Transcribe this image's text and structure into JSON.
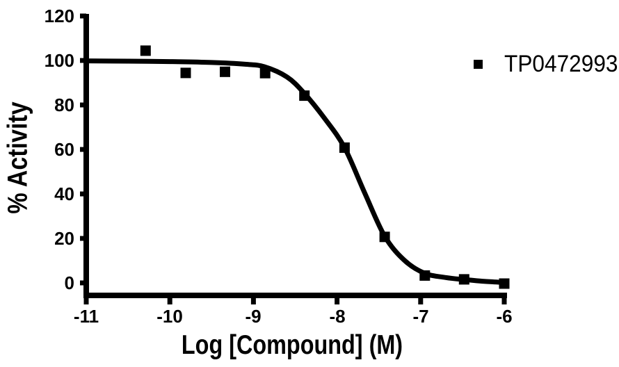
{
  "chart_data": {
    "type": "scatter",
    "title": "",
    "xlabel": "Log [Compound] (M)",
    "ylabel": "% Activity",
    "xlim": [
      -11,
      -6
    ],
    "ylim": [
      0,
      120
    ],
    "x_ticks": [
      -11,
      -10,
      -9,
      -8,
      -7,
      -6
    ],
    "y_ticks": [
      0,
      20,
      40,
      60,
      80,
      100,
      120
    ],
    "grid": false,
    "ink_color": "#000000",
    "background_color": "#ffffff",
    "legend": {
      "position": "top-right",
      "entries": [
        {
          "label": "TP0472993",
          "marker": "filled-square",
          "color": "#000000"
        }
      ]
    },
    "series": [
      {
        "name": "TP0472993",
        "marker": "filled-square",
        "marker_size_px": 15,
        "color": "#000000",
        "points": [
          {
            "x": -10.29,
            "y": 104.4
          },
          {
            "x": -9.81,
            "y": 94.4
          },
          {
            "x": -9.34,
            "y": 94.9
          },
          {
            "x": -8.86,
            "y": 94.3
          },
          {
            "x": -8.39,
            "y": 84.2
          },
          {
            "x": -7.91,
            "y": 60.8
          },
          {
            "x": -7.43,
            "y": 20.7
          },
          {
            "x": -6.95,
            "y": 3.3
          },
          {
            "x": -6.48,
            "y": 1.6
          },
          {
            "x": -6.0,
            "y": -0.3
          }
        ]
      }
    ],
    "fit_curve": {
      "name": "sigmoidal dose-response fit",
      "color": "#000000",
      "stroke_width_px": 7,
      "points": [
        [
          -11.0,
          99.8
        ],
        [
          -10.5,
          99.7
        ],
        [
          -10.0,
          99.5
        ],
        [
          -9.5,
          99.1
        ],
        [
          -9.1,
          98.3
        ],
        [
          -8.87,
          97.2
        ],
        [
          -8.6,
          92.6
        ],
        [
          -8.4,
          85.6
        ],
        [
          -8.15,
          74.0
        ],
        [
          -7.91,
          60.8
        ],
        [
          -7.67,
          40.5
        ],
        [
          -7.43,
          21.0
        ],
        [
          -7.19,
          10.0
        ],
        [
          -6.95,
          4.3
        ],
        [
          -6.7,
          2.4
        ],
        [
          -6.48,
          1.5
        ],
        [
          -6.24,
          0.7
        ],
        [
          -6.0,
          0.2
        ]
      ]
    }
  }
}
